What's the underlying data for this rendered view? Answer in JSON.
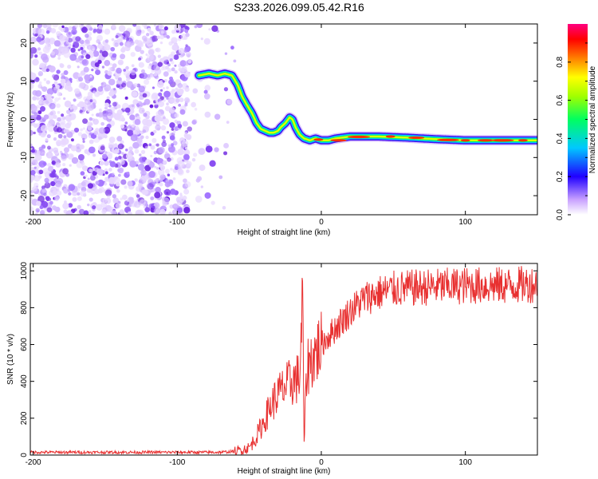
{
  "chart_data": [
    {
      "type": "heatmap",
      "title": "S233.2026.099.05.42.R16",
      "xlabel": "Height of straight line (km)",
      "ylabel": "Frequency (Hz)",
      "xlim": [
        -202,
        150
      ],
      "ylim": [
        -25,
        25
      ],
      "xticks": [
        -200,
        -100,
        0,
        100
      ],
      "yticks": [
        -20,
        -10,
        0,
        10,
        20
      ],
      "colorbar": {
        "label": "Normalized spectral amplitude",
        "range": [
          0,
          1
        ],
        "ticks": [
          "0.0",
          "0.2",
          "0.4",
          "0.6",
          "0.8"
        ]
      },
      "trace": {
        "x": [
          -85,
          -78,
          -72,
          -67,
          -62,
          -58,
          -55,
          -52,
          -48,
          -45,
          -42,
          -39,
          -36,
          -33,
          -30,
          -28,
          -25,
          -22,
          -20,
          -18,
          -15,
          -12,
          -8,
          -4,
          0,
          5,
          10,
          20,
          40,
          60,
          80,
          100,
          120,
          150
        ],
        "freq": [
          11.5,
          12,
          11.5,
          12,
          11.5,
          9,
          6,
          4,
          1.5,
          -1,
          -2.5,
          -3,
          -3.5,
          -3.5,
          -3,
          -2,
          -1,
          0.5,
          0,
          -2,
          -4,
          -5,
          -5.5,
          -5,
          -5.5,
          -5.5,
          -5,
          -4.5,
          -4.5,
          -4.8,
          -5.2,
          -5.5,
          -5.5,
          -5.5
        ]
      },
      "noise_region": [
        -202,
        -60
      ]
    },
    {
      "type": "line",
      "xlabel": "Height of straight line (km)",
      "ylabel": "SNR (10 * v/v)",
      "xlim": [
        -202,
        150
      ],
      "ylim": [
        0,
        1040
      ],
      "xticks": [
        -200,
        -100,
        0,
        100
      ],
      "yticks": [
        0,
        200,
        400,
        600,
        800,
        1000
      ],
      "color": "#e83030",
      "series": [
        {
          "name": "SNR",
          "x": [
            -202,
            -150,
            -100,
            -70,
            -60,
            -50,
            -45,
            -40,
            -35,
            -30,
            -25,
            -20,
            -15,
            -13,
            -12,
            -10,
            -5,
            0,
            10,
            20,
            30,
            40,
            50,
            70,
            100,
            130,
            150
          ],
          "y": [
            15,
            15,
            15,
            15,
            20,
            40,
            100,
            180,
            270,
            330,
            370,
            400,
            420,
            860,
            60,
            480,
            540,
            600,
            690,
            780,
            850,
            880,
            900,
            910,
            920,
            920,
            930
          ]
        }
      ]
    }
  ]
}
